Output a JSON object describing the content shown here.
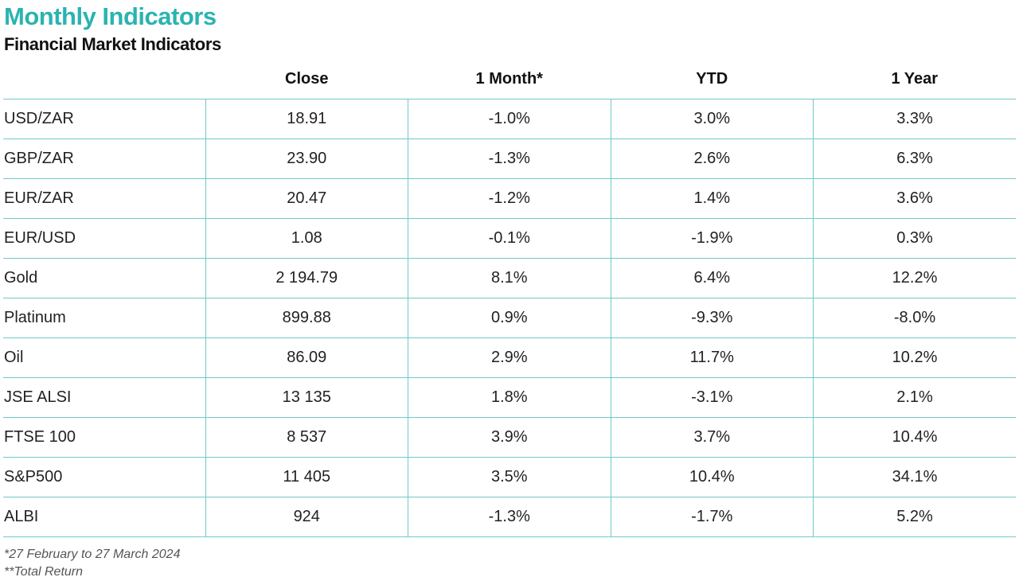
{
  "header": {
    "title": "Monthly Indicators",
    "subtitle": "Financial Market Indicators"
  },
  "table": {
    "columns": [
      "",
      "Close",
      "1 Month*",
      "YTD",
      "1 Year"
    ],
    "rows": [
      {
        "label": "USD/ZAR",
        "close": "18.91",
        "one_month": "-1.0%",
        "ytd": "3.0%",
        "one_year": "3.3%"
      },
      {
        "label": "GBP/ZAR",
        "close": "23.90",
        "one_month": "-1.3%",
        "ytd": "2.6%",
        "one_year": "6.3%"
      },
      {
        "label": "EUR/ZAR",
        "close": "20.47",
        "one_month": "-1.2%",
        "ytd": "1.4%",
        "one_year": "3.6%"
      },
      {
        "label": "EUR/USD",
        "close": "1.08",
        "one_month": "-0.1%",
        "ytd": "-1.9%",
        "one_year": "0.3%"
      },
      {
        "label": "Gold",
        "close": "2 194.79",
        "one_month": "8.1%",
        "ytd": "6.4%",
        "one_year": "12.2%"
      },
      {
        "label": "Platinum",
        "close": "899.88",
        "one_month": "0.9%",
        "ytd": "-9.3%",
        "one_year": "-8.0%"
      },
      {
        "label": "Oil",
        "close": "86.09",
        "one_month": "2.9%",
        "ytd": "11.7%",
        "one_year": "10.2%"
      },
      {
        "label": "JSE ALSI",
        "close": "13 135",
        "one_month": "1.8%",
        "ytd": "-3.1%",
        "one_year": "2.1%"
      },
      {
        "label": "FTSE 100",
        "close": "8 537",
        "one_month": "3.9%",
        "ytd": "3.7%",
        "one_year": "10.4%"
      },
      {
        "label": "S&P500",
        "close": "11 405",
        "one_month": "3.5%",
        "ytd": "10.4%",
        "one_year": "34.1%"
      },
      {
        "label": "ALBI",
        "close": "924",
        "one_month": "-1.3%",
        "ytd": "-1.7%",
        "one_year": "5.2%"
      }
    ]
  },
  "footnotes": {
    "period": "*27 February to 27 March 2024",
    "total_return": "**Total Return"
  },
  "colors": {
    "title": "#2bb3b1",
    "grid_line": "#6fc9c7",
    "text": "#222222"
  }
}
